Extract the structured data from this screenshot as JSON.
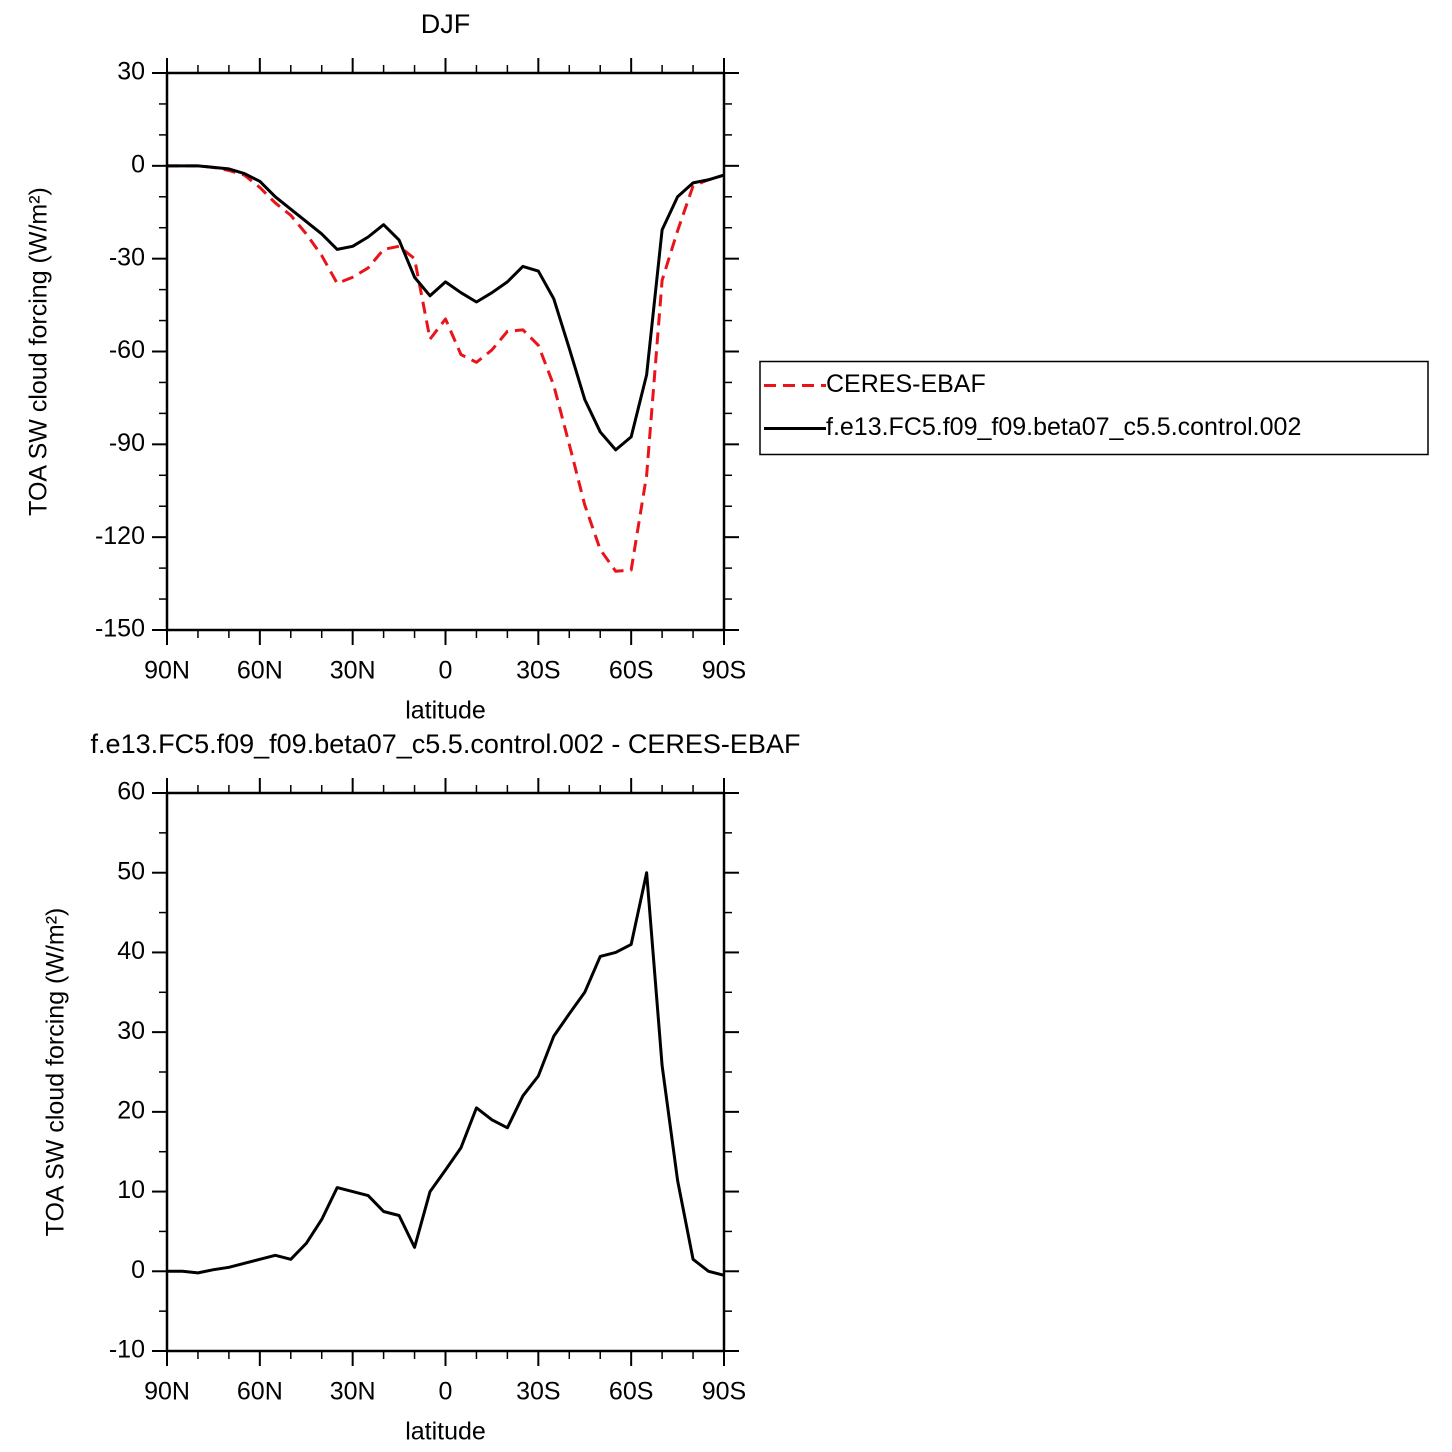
{
  "chart_data": [
    {
      "type": "line",
      "title": "DJF",
      "xlabel": "latitude",
      "ylabel": "TOA SW cloud forcing (W/m²)",
      "x": [
        90,
        85,
        80,
        75,
        70,
        65,
        60,
        55,
        50,
        45,
        40,
        35,
        30,
        25,
        20,
        15,
        10,
        5,
        0,
        -5,
        -10,
        -15,
        -20,
        -25,
        -30,
        -35,
        -40,
        -45,
        -50,
        -55,
        -60,
        -65,
        -70,
        -75,
        -80,
        -85,
        -90
      ],
      "series": [
        {
          "name": "CERES-EBAF",
          "color": "#e8141a",
          "dashed": true,
          "values": [
            0,
            0,
            0,
            -0.5,
            -1.5,
            -3,
            -7,
            -12,
            -16,
            -22,
            -29,
            -38,
            -36,
            -33,
            -27,
            -26,
            -30,
            -56,
            -49.5,
            -61,
            -63.5,
            -59.5,
            -53.5,
            -53,
            -58,
            -71,
            -90,
            -109.6,
            -124,
            -131,
            -130.6,
            -100,
            -37,
            -21,
            -6.5,
            -4.5,
            -3
          ]
        },
        {
          "name": "f.e13.FC5.f09_f09.beta07_c5.5.control.002",
          "color": "#000000",
          "dashed": false,
          "values": [
            0,
            0,
            0,
            -0.5,
            -1,
            -2.5,
            -5,
            -10,
            -14,
            -18,
            -22,
            -27,
            -26,
            -23,
            -19,
            -24,
            -36,
            -42,
            -37.5,
            -41,
            -44,
            -41,
            -37.5,
            -32.5,
            -34,
            -43,
            -59,
            -75.5,
            -86,
            -91.8,
            -87.6,
            -67.5,
            -20.7,
            -10,
            -5.5,
            -4.5,
            -3
          ]
        }
      ],
      "xlim": [
        90,
        -90
      ],
      "xticks": [
        {
          "value": 90,
          "label": "90N"
        },
        {
          "value": 60,
          "label": "60N"
        },
        {
          "value": 30,
          "label": "30N"
        },
        0,
        {
          "value": -30,
          "label": "30S"
        },
        {
          "value": -60,
          "label": "60S"
        },
        {
          "value": -90,
          "label": "90S"
        }
      ],
      "xminorticks": [
        80,
        70,
        50,
        40,
        20,
        10,
        -10,
        -20,
        -40,
        -50,
        -70,
        -80
      ],
      "ylim": [
        -150,
        30
      ],
      "yticks": [
        -150,
        -120,
        -90,
        -60,
        -30,
        0,
        30
      ],
      "yminorticks": [
        -140,
        -130,
        -110,
        -100,
        -80,
        -70,
        -50,
        -40,
        -20,
        -10,
        10,
        20
      ],
      "legend": "right"
    },
    {
      "type": "line",
      "title": "f.e13.FC5.f09_f09.beta07_c5.5.control.002 - CERES-EBAF",
      "xlabel": "latitude",
      "ylabel": "TOA SW cloud forcing (W/m²)",
      "x": [
        90,
        85,
        80,
        75,
        70,
        65,
        60,
        55,
        50,
        45,
        40,
        35,
        30,
        25,
        20,
        15,
        10,
        5,
        0,
        -5,
        -10,
        -15,
        -20,
        -25,
        -30,
        -35,
        -40,
        -45,
        -50,
        -55,
        -60,
        -65,
        -70,
        -75,
        -80,
        -85,
        -90
      ],
      "series": [
        {
          "color": "#000000",
          "dashed": false,
          "values": [
            0,
            0,
            -0.2,
            0.2,
            0.5,
            1,
            1.5,
            2,
            1.5,
            3.5,
            6.5,
            10.5,
            10,
            9.5,
            7.5,
            7,
            3,
            10,
            12.7,
            15.5,
            20.5,
            19,
            18,
            22,
            24.5,
            29.5,
            32.3,
            35,
            39.5,
            40,
            41,
            50,
            25.8,
            11.4,
            1.5,
            0,
            -0.5
          ]
        }
      ],
      "xlim": [
        90,
        -90
      ],
      "xticks": [
        {
          "value": 90,
          "label": "90N"
        },
        {
          "value": 60,
          "label": "60N"
        },
        {
          "value": 30,
          "label": "30N"
        },
        0,
        {
          "value": -30,
          "label": "30S"
        },
        {
          "value": -60,
          "label": "60S"
        },
        {
          "value": -90,
          "label": "90S"
        }
      ],
      "xminorticks": [
        80,
        70,
        50,
        40,
        20,
        10,
        -10,
        -20,
        -40,
        -50,
        -70,
        -80
      ],
      "ylim": [
        -10,
        60
      ],
      "yticks": [
        -10,
        0,
        10,
        20,
        30,
        40,
        50,
        60
      ],
      "yminorticks": [
        -5,
        5,
        15,
        25,
        35,
        45,
        55
      ]
    }
  ]
}
